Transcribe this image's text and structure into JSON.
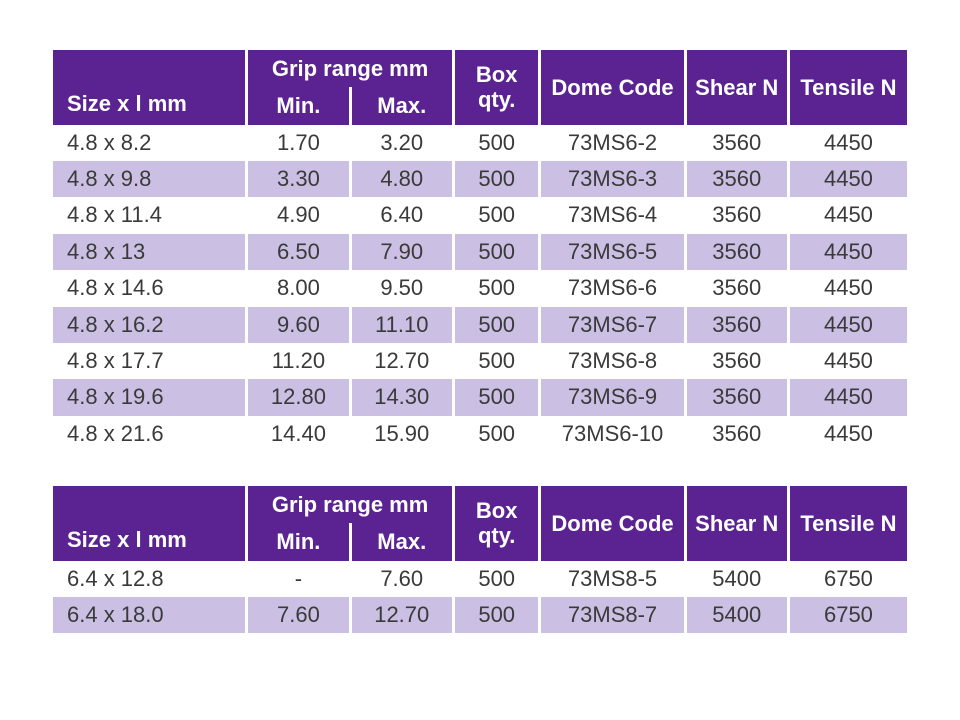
{
  "colors": {
    "header_bg": "#5a2391",
    "header_fg": "#ffffff",
    "row_odd_bg": "#ffffff",
    "row_even_bg": "#cbbfe3",
    "text": "#3a3a3a",
    "page_bg": "#ffffff"
  },
  "typography": {
    "font_family": "Century Gothic / Futura",
    "header_fontsize_pt": 16,
    "cell_fontsize_pt": 16
  },
  "headers": {
    "size": "Size x l mm",
    "grip_range": "Grip range mm",
    "grip_min": "Min.",
    "grip_max": "Max.",
    "box_qty": "Box qty.",
    "dome_code": "Dome Code",
    "shear": "Shear N",
    "tensile": "Tensile N"
  },
  "table1": {
    "rows": [
      {
        "size": "4.8 x 8.2",
        "min": "1.70",
        "max": "3.20",
        "box": "500",
        "code": "73MS6-2",
        "shear": "3560",
        "tensile": "4450"
      },
      {
        "size": "4.8 x 9.8",
        "min": "3.30",
        "max": "4.80",
        "box": "500",
        "code": "73MS6-3",
        "shear": "3560",
        "tensile": "4450"
      },
      {
        "size": "4.8 x 11.4",
        "min": "4.90",
        "max": "6.40",
        "box": "500",
        "code": "73MS6-4",
        "shear": "3560",
        "tensile": "4450"
      },
      {
        "size": "4.8 x 13",
        "min": "6.50",
        "max": "7.90",
        "box": "500",
        "code": "73MS6-5",
        "shear": "3560",
        "tensile": "4450"
      },
      {
        "size": "4.8 x 14.6",
        "min": "8.00",
        "max": "9.50",
        "box": "500",
        "code": "73MS6-6",
        "shear": "3560",
        "tensile": "4450"
      },
      {
        "size": "4.8 x 16.2",
        "min": "9.60",
        "max": "11.10",
        "box": "500",
        "code": "73MS6-7",
        "shear": "3560",
        "tensile": "4450"
      },
      {
        "size": "4.8 x 17.7",
        "min": "11.20",
        "max": "12.70",
        "box": "500",
        "code": "73MS6-8",
        "shear": "3560",
        "tensile": "4450"
      },
      {
        "size": "4.8 x 19.6",
        "min": "12.80",
        "max": "14.30",
        "box": "500",
        "code": "73MS6-9",
        "shear": "3560",
        "tensile": "4450"
      },
      {
        "size": "4.8 x 21.6",
        "min": "14.40",
        "max": "15.90",
        "box": "500",
        "code": "73MS6-10",
        "shear": "3560",
        "tensile": "4450"
      }
    ]
  },
  "table2": {
    "rows": [
      {
        "size": "6.4 x 12.8",
        "min": "-",
        "max": "7.60",
        "box": "500",
        "code": "73MS8-5",
        "shear": "5400",
        "tensile": "6750"
      },
      {
        "size": "6.4 x 18.0",
        "min": "7.60",
        "max": "12.70",
        "box": "500",
        "code": "73MS8-7",
        "shear": "5400",
        "tensile": "6750"
      }
    ]
  }
}
